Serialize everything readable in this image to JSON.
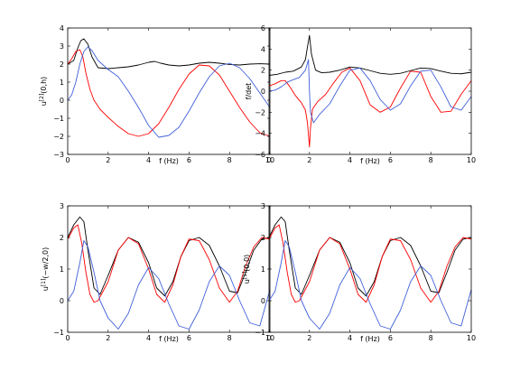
{
  "figure": {
    "subplots": [
      {
        "ylabel": {
          "base": "u",
          "sup": "[2]",
          "rest": "(0,h)"
        }
      },
      {
        "ylabel": {
          "base": "f/det",
          "sup": "",
          "rest": ""
        }
      },
      {
        "ylabel": {
          "base": "u",
          "sup": "[1]",
          "rest": "(−w/2,0)"
        }
      },
      {
        "ylabel": {
          "base": "u",
          "sup": "[1]",
          "rest": "(0,0)"
        }
      }
    ]
  },
  "chart_data": [
    {
      "type": "line",
      "title": "",
      "xlabel": "f (Hz)",
      "ylabel": "u[2](0,h)",
      "xlim": [
        0,
        10
      ],
      "ylim": [
        -3,
        4
      ],
      "xticks": [
        0,
        2,
        4,
        6,
        8,
        10
      ],
      "yticks": [
        -3,
        -2,
        -1,
        0,
        1,
        2,
        3,
        4
      ],
      "grid": false,
      "series": [
        {
          "color": "#000000",
          "x": [
            0,
            0.3,
            0.5,
            0.65,
            0.8,
            1.0,
            1.2,
            1.5,
            2.0,
            2.5,
            3.0,
            3.5,
            4.0,
            4.3,
            4.6,
            5.0,
            5.5,
            6.0,
            6.5,
            7.0,
            7.5,
            8.0,
            8.5,
            9.0,
            9.5,
            10.0
          ],
          "y": [
            2.0,
            2.2,
            2.9,
            3.3,
            3.4,
            3.1,
            2.4,
            1.8,
            1.75,
            1.8,
            1.85,
            1.95,
            2.1,
            2.15,
            2.05,
            1.95,
            1.9,
            1.95,
            2.05,
            2.1,
            2.05,
            1.98,
            1.95,
            2.0,
            2.02,
            2.0
          ]
        },
        {
          "color": "#ff0000",
          "x": [
            0,
            0.2,
            0.4,
            0.6,
            0.75,
            0.9,
            1.1,
            1.3,
            1.6,
            2.0,
            2.5,
            3.0,
            3.5,
            4.0,
            4.5,
            5.0,
            5.5,
            6.0,
            6.5,
            7.0,
            7.5,
            8.0,
            8.5,
            9.0,
            9.5,
            10.0
          ],
          "y": [
            2.0,
            2.3,
            2.7,
            2.8,
            2.4,
            1.5,
            0.6,
            0.0,
            -0.5,
            -0.95,
            -1.45,
            -1.85,
            -2.0,
            -1.85,
            -1.3,
            -0.4,
            0.6,
            1.45,
            1.95,
            1.9,
            1.4,
            0.5,
            -0.4,
            -1.2,
            -1.8,
            -2.0
          ]
        },
        {
          "color": "#3f5fd8",
          "x": [
            0,
            0.2,
            0.4,
            0.6,
            0.8,
            1.0,
            1.2,
            1.5,
            2.0,
            2.5,
            3.0,
            3.5,
            4.0,
            4.5,
            5.0,
            5.5,
            6.0,
            6.5,
            7.0,
            7.5,
            8.0,
            8.5,
            9.0,
            9.5,
            10.0
          ],
          "y": [
            0.0,
            0.3,
            1.0,
            2.0,
            2.7,
            2.95,
            2.75,
            2.2,
            1.7,
            1.3,
            0.5,
            -0.4,
            -1.4,
            -2.05,
            -1.95,
            -1.5,
            -0.6,
            0.4,
            1.3,
            1.9,
            2.05,
            1.8,
            1.2,
            0.4,
            -0.4
          ]
        }
      ]
    },
    {
      "type": "line",
      "title": "",
      "xlabel": "f (Hz)",
      "ylabel": "f/det",
      "xlim": [
        0,
        10
      ],
      "ylim": [
        -6,
        6
      ],
      "xticks": [
        0,
        2,
        4,
        6,
        8,
        10
      ],
      "yticks": [
        -6,
        -4,
        -2,
        0,
        2,
        4,
        6
      ],
      "grid": false,
      "series": [
        {
          "color": "#000000",
          "x": [
            0,
            0.4,
            0.8,
            1.2,
            1.6,
            1.8,
            1.9,
            2.0,
            2.1,
            2.3,
            2.6,
            3.0,
            3.5,
            4.0,
            4.5,
            5.0,
            5.5,
            6.0,
            6.5,
            7.0,
            7.5,
            8.0,
            8.5,
            9.0,
            9.5,
            10.0
          ],
          "y": [
            1.5,
            1.6,
            1.8,
            1.9,
            2.3,
            3.0,
            4.2,
            5.3,
            3.5,
            2.0,
            1.75,
            1.8,
            2.0,
            2.3,
            2.2,
            1.95,
            1.7,
            1.6,
            1.7,
            1.95,
            2.2,
            2.15,
            1.9,
            1.7,
            1.65,
            1.8
          ]
        },
        {
          "color": "#ff0000",
          "x": [
            0,
            0.3,
            0.6,
            0.8,
            1.0,
            1.3,
            1.6,
            1.8,
            1.9,
            2.0,
            2.05,
            2.15,
            2.4,
            2.8,
            3.2,
            3.6,
            4.0,
            4.5,
            5.0,
            5.5,
            6.0,
            6.5,
            7.0,
            7.5,
            8.0,
            8.5,
            9.0,
            9.5,
            10.0
          ],
          "y": [
            0.5,
            0.7,
            1.0,
            1.0,
            0.5,
            -0.4,
            -1.1,
            -1.8,
            -3.0,
            -5.3,
            -3.5,
            -1.7,
            -1.0,
            -0.3,
            0.8,
            1.8,
            2.2,
            1.0,
            -1.3,
            -2.0,
            -1.5,
            0.3,
            1.9,
            1.8,
            -0.5,
            -2.0,
            -1.9,
            -0.3,
            1.0
          ]
        },
        {
          "color": "#3f5fd8",
          "x": [
            0,
            0.3,
            0.6,
            0.9,
            1.2,
            1.5,
            1.8,
            1.95,
            2.0,
            2.05,
            2.2,
            2.5,
            3.0,
            3.5,
            4.0,
            4.5,
            5.0,
            5.5,
            6.0,
            6.5,
            7.0,
            7.5,
            8.0,
            8.5,
            9.0,
            9.5,
            10.0
          ],
          "y": [
            0.0,
            0.1,
            0.4,
            0.85,
            1.1,
            1.3,
            2.0,
            3.0,
            0.0,
            -2.0,
            -3.0,
            -2.2,
            -1.2,
            0.5,
            2.0,
            2.2,
            1.0,
            -0.8,
            -1.8,
            -1.2,
            0.5,
            1.9,
            2.0,
            0.4,
            -1.5,
            -1.8,
            -0.5
          ]
        }
      ]
    },
    {
      "type": "line",
      "title": "",
      "xlabel": "f (Hz)",
      "ylabel": "u[1](−w/2,0)",
      "xlim": [
        0,
        10
      ],
      "ylim": [
        -1,
        3
      ],
      "xticks": [
        0,
        2,
        4,
        6,
        8,
        10
      ],
      "yticks": [
        -1,
        0,
        1,
        2,
        3
      ],
      "grid": false,
      "series": [
        {
          "color": "#000000",
          "x": [
            0,
            0.3,
            0.6,
            0.8,
            1.0,
            1.3,
            1.6,
            2.0,
            2.5,
            3.0,
            3.5,
            4.0,
            4.4,
            4.8,
            5.2,
            5.6,
            6.0,
            6.5,
            7.0,
            7.5,
            8.0,
            8.4,
            8.8,
            9.2,
            9.6,
            10.0
          ],
          "y": [
            2.0,
            2.4,
            2.65,
            2.5,
            1.6,
            0.4,
            0.2,
            0.8,
            1.6,
            2.0,
            1.85,
            1.2,
            0.4,
            0.15,
            0.6,
            1.4,
            1.9,
            2.0,
            1.75,
            1.1,
            0.3,
            0.25,
            0.9,
            1.6,
            1.95,
            2.0
          ]
        },
        {
          "color": "#ff0000",
          "x": [
            0,
            0.3,
            0.5,
            0.7,
            0.9,
            1.1,
            1.3,
            1.5,
            2.0,
            2.5,
            3.0,
            3.5,
            4.0,
            4.4,
            4.8,
            5.2,
            5.6,
            6.0,
            6.5,
            7.0,
            7.5,
            8.0,
            8.4,
            8.8,
            9.2,
            9.6,
            10.0
          ],
          "y": [
            1.95,
            2.3,
            2.4,
            1.8,
            0.9,
            0.2,
            -0.05,
            0.0,
            0.6,
            1.6,
            2.0,
            1.8,
            1.0,
            0.2,
            -0.05,
            0.5,
            1.4,
            1.95,
            1.9,
            1.3,
            0.4,
            -0.05,
            0.3,
            1.1,
            1.7,
            2.0,
            1.95
          ]
        },
        {
          "color": "#3f5fd8",
          "x": [
            0,
            0.3,
            0.6,
            0.8,
            1.0,
            1.3,
            1.6,
            2.0,
            2.5,
            3.0,
            3.5,
            4.0,
            4.5,
            5.0,
            5.5,
            6.0,
            6.5,
            7.0,
            7.5,
            8.0,
            8.5,
            9.0,
            9.5,
            10.0
          ],
          "y": [
            0.0,
            0.3,
            1.2,
            1.9,
            1.7,
            0.9,
            0.0,
            -0.55,
            -0.9,
            -0.4,
            0.5,
            1.05,
            0.7,
            -0.1,
            -0.8,
            -0.9,
            -0.3,
            0.6,
            1.1,
            0.8,
            0.0,
            -0.7,
            -0.8,
            0.35
          ]
        }
      ]
    },
    {
      "type": "line",
      "title": "",
      "xlabel": "f (Hz)",
      "ylabel": "u[1](0,0)",
      "xlim": [
        0,
        10
      ],
      "ylim": [
        -1,
        3
      ],
      "xticks": [
        0,
        2,
        4,
        6,
        8,
        10
      ],
      "yticks": [
        -1,
        0,
        1,
        2,
        3
      ],
      "grid": false,
      "series": [
        {
          "color": "#000000",
          "x": [
            0,
            0.3,
            0.6,
            0.8,
            1.0,
            1.3,
            1.6,
            2.0,
            2.5,
            3.0,
            3.5,
            4.0,
            4.4,
            4.8,
            5.2,
            5.6,
            6.0,
            6.5,
            7.0,
            7.5,
            8.0,
            8.4,
            8.8,
            9.2,
            9.6,
            10.0
          ],
          "y": [
            2.0,
            2.4,
            2.65,
            2.5,
            1.6,
            0.4,
            0.2,
            0.8,
            1.6,
            2.0,
            1.85,
            1.2,
            0.4,
            0.15,
            0.6,
            1.4,
            1.9,
            2.0,
            1.75,
            1.1,
            0.3,
            0.25,
            0.9,
            1.6,
            1.95,
            2.0
          ]
        },
        {
          "color": "#ff0000",
          "x": [
            0,
            0.3,
            0.5,
            0.7,
            0.9,
            1.1,
            1.3,
            1.5,
            2.0,
            2.5,
            3.0,
            3.5,
            4.0,
            4.4,
            4.8,
            5.2,
            5.6,
            6.0,
            6.5,
            7.0,
            7.5,
            8.0,
            8.4,
            8.8,
            9.2,
            9.6,
            10.0
          ],
          "y": [
            1.95,
            2.3,
            2.4,
            1.8,
            0.9,
            0.2,
            -0.05,
            0.0,
            0.6,
            1.6,
            2.0,
            1.8,
            1.0,
            0.2,
            -0.05,
            0.5,
            1.4,
            1.95,
            1.9,
            1.3,
            0.4,
            -0.05,
            0.3,
            1.1,
            1.7,
            2.0,
            1.95
          ]
        },
        {
          "color": "#3f5fd8",
          "x": [
            0,
            0.3,
            0.6,
            0.8,
            1.0,
            1.3,
            1.6,
            2.0,
            2.5,
            3.0,
            3.5,
            4.0,
            4.5,
            5.0,
            5.5,
            6.0,
            6.5,
            7.0,
            7.5,
            8.0,
            8.5,
            9.0,
            9.5,
            10.0
          ],
          "y": [
            0.0,
            0.3,
            1.2,
            1.9,
            1.7,
            0.9,
            0.0,
            -0.55,
            -0.9,
            -0.4,
            0.5,
            1.05,
            0.7,
            -0.1,
            -0.8,
            -0.9,
            -0.3,
            0.6,
            1.1,
            0.8,
            0.0,
            -0.7,
            -0.8,
            0.35
          ]
        }
      ]
    }
  ]
}
